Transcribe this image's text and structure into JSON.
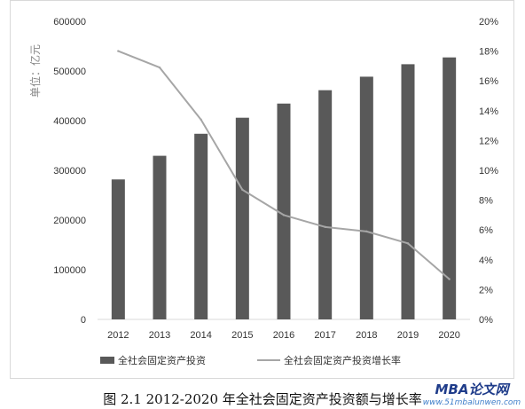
{
  "chart_data": {
    "type": "bar",
    "categories": [
      "2012",
      "2013",
      "2014",
      "2015",
      "2016",
      "2017",
      "2018",
      "2019",
      "2020"
    ],
    "series": [
      {
        "name": "全社会固定资产投资",
        "type": "bar",
        "axis": "left",
        "color": "#595959",
        "values": [
          281700,
          329300,
          373600,
          405900,
          434400,
          461300,
          488500,
          513600,
          527300
        ]
      },
      {
        "name": "全社会固定资产投资增长率",
        "type": "line",
        "axis": "right",
        "color": "#a6a6a6",
        "values": [
          18.0,
          16.9,
          13.4,
          8.7,
          7.0,
          6.2,
          5.9,
          5.1,
          2.7
        ]
      }
    ],
    "ylabel": "单位：亿元",
    "ylim": [
      0,
      600000
    ],
    "yticks": [
      "0",
      "100000",
      "200000",
      "300000",
      "400000",
      "500000",
      "600000"
    ],
    "y2lim": [
      0,
      20
    ],
    "y2ticks": [
      "0%",
      "2%",
      "4%",
      "6%",
      "8%",
      "10%",
      "12%",
      "14%",
      "16%",
      "18%",
      "20%"
    ],
    "grid": false,
    "legend": "bottom"
  },
  "caption": "图 2.1 2012-2020 年全社会固定资产投资额与增长率",
  "watermark": {
    "title": "MBA论文网",
    "url": "www.51mbalunwen.com"
  }
}
